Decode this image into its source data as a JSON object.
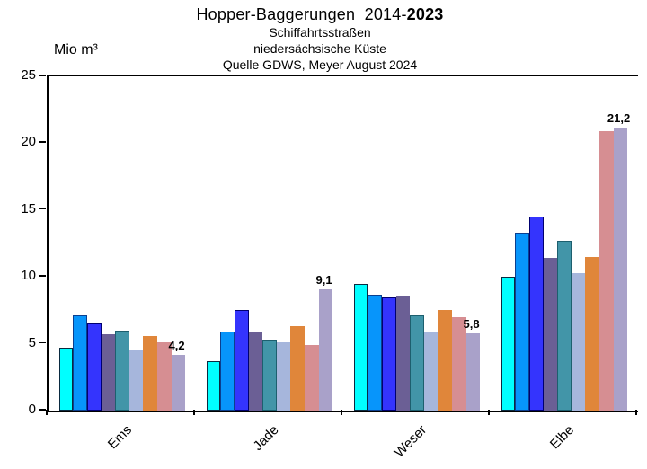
{
  "header": {
    "title_prefix": "Hopper-Baggerungen  2014-",
    "title_bold": "2023",
    "subtitle1": "Schiffahrtsstraßen",
    "subtitle2": "niedersächsische Küste",
    "subtitle3": "Quelle GDWS, Meyer August 2024"
  },
  "chart_data": {
    "type": "bar",
    "title": "Hopper-Baggerungen 2014-2023",
    "subtitle_lines": [
      "Schiffahrtsstraßen",
      "niedersächsische Küste",
      "Quelle GDWS, Meyer August 2024"
    ],
    "ylabel": "Mio m³",
    "xlabel": "",
    "ylim": [
      0,
      25
    ],
    "yticks": [
      "0",
      "5",
      "10",
      "15",
      "20",
      "25"
    ],
    "grid": false,
    "legend_position": "none",
    "categories": [
      "Ems",
      "Jade",
      "Weser",
      "Elbe"
    ],
    "series": [
      {
        "color": "#00FFFF",
        "border_color": "#0a2a40",
        "values": [
          4.7,
          3.7,
          9.5,
          10.0
        ]
      },
      {
        "color": "#0795FB",
        "border_color": "#0b3f8f",
        "values": [
          7.1,
          5.9,
          8.7,
          13.3
        ]
      },
      {
        "color": "#3434FD",
        "border_color": "#000070",
        "values": [
          6.5,
          7.5,
          8.5,
          14.5
        ]
      },
      {
        "color": "#6B5F95",
        "border_color": "none",
        "values": [
          5.7,
          5.9,
          8.6,
          11.4
        ]
      },
      {
        "color": "#4295A8",
        "border_color": "#1d5f6e",
        "values": [
          6.0,
          5.3,
          7.1,
          12.7
        ]
      },
      {
        "color": "#A6B6DC",
        "border_color": "none",
        "values": [
          4.6,
          5.1,
          5.9,
          10.3
        ]
      },
      {
        "color": "#E0863A",
        "border_color": "none",
        "values": [
          5.6,
          6.3,
          7.5,
          11.5
        ]
      },
      {
        "color": "#D68E92",
        "border_color": "none",
        "values": [
          5.1,
          4.9,
          7.0,
          20.9
        ]
      },
      {
        "color": "#A9A1C9",
        "border_color": "none",
        "values": [
          4.2,
          9.1,
          5.8,
          21.2
        ]
      }
    ],
    "bar_value_labels": [
      "4,2",
      "9,1",
      "5,8",
      "21,2"
    ]
  }
}
